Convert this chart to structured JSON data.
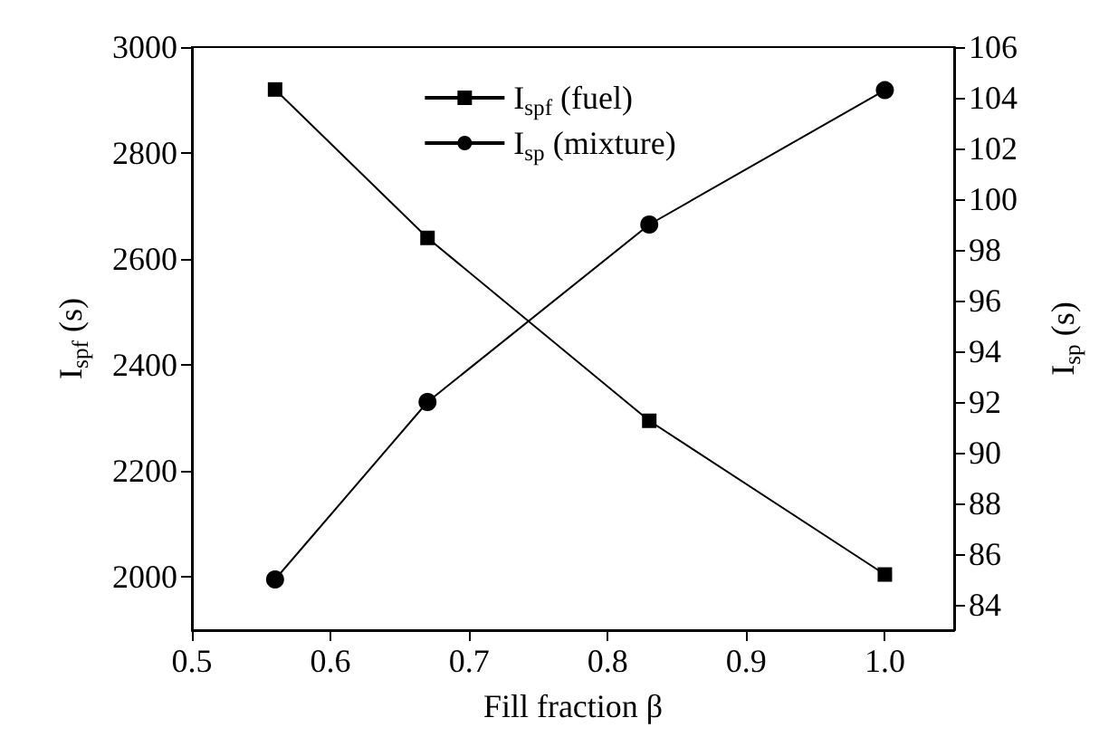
{
  "chart_data": {
    "type": "line",
    "xlabel": "Fill fraction β",
    "ylabel": "I$_{spf}$ (s)",
    "y2label": "I$_{sp}$ (s)",
    "x": [
      0.56,
      0.67,
      0.83,
      1.0
    ],
    "series": [
      {
        "name": "I$_{spf}$ (fuel)",
        "color": "#000000",
        "marker": "square",
        "values": [
          2920,
          2640,
          2295,
          2005
        ]
      },
      {
        "name": "I$_{sp}$ (mixture)",
        "color": "#000000",
        "marker": "circle",
        "axis": "y2",
        "values": [
          85,
          92,
          99,
          104.3
        ]
      }
    ],
    "xlim": [
      0.5,
      1.05
    ],
    "xticks": [
      0.5,
      0.6,
      0.7,
      0.8,
      0.9,
      {
        "value": 1,
        "label": "1.0"
      }
    ],
    "ylim": [
      1900,
      3000
    ],
    "yticks": [
      2000,
      2200,
      2400,
      2600,
      2800,
      3000
    ],
    "y2lim": [
      83,
      106
    ],
    "y2ticks": [
      84,
      86,
      88,
      90,
      92,
      94,
      96,
      98,
      100,
      102,
      104,
      106
    ],
    "legend": "top",
    "grid": false,
    "line_style": "solid"
  }
}
